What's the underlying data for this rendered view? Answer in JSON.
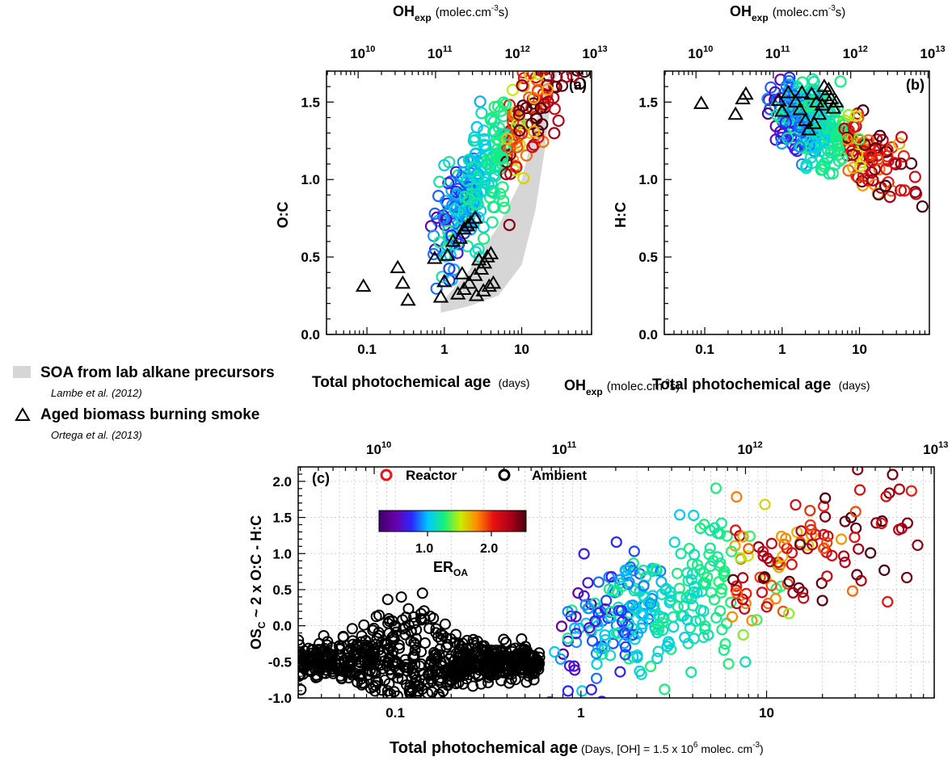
{
  "colors": {
    "ambient": "#000000",
    "reactor_legend": "#e8141b",
    "shade": "#d6d6d6",
    "colorbar": [
      "#3d006a",
      "#6a00a8",
      "#2a28ff",
      "#00c8ff",
      "#18f07a",
      "#c8ee00",
      "#ff8a00",
      "#e61111",
      "#b00018",
      "#4a0010"
    ]
  },
  "legend_side": {
    "soa_label": "SOA from lab alkane precursors",
    "soa_ref": "Lambe et al. (2012)",
    "bb_label": "Aged biomass burning smoke",
    "bb_ref": "Ortega et al. (2013)"
  },
  "chart_data": [
    {
      "id": "a",
      "type": "scatter",
      "panel_label": "(a)",
      "title": "",
      "ylabel": "O:C",
      "xlabel_main": "Total photochemical age",
      "xlabel_unit": "(days)",
      "top_axis_label_main": "OH",
      "top_axis_label_sub": "exp",
      "top_axis_unit": "(molec.cm",
      "top_axis_unit_exp": "-3",
      "top_axis_unit_tail": "s)",
      "x_scale": "log",
      "xlim": [
        0.03,
        80
      ],
      "ylim": [
        0,
        1.7
      ],
      "x_ticks": [
        0.1,
        1,
        10
      ],
      "x_tick_labels": [
        "0.1",
        "1",
        "10"
      ],
      "y_ticks": [
        0,
        0.5,
        1.0,
        1.5
      ],
      "y_tick_labels": [
        "0.0",
        "0.5",
        "1.0",
        "1.5"
      ],
      "top_ticks": [
        "10",
        "10",
        "10",
        "10"
      ],
      "top_tick_exps": [
        "10",
        "11",
        "12",
        "13"
      ],
      "top_tick_age_days": [
        0.077,
        0.77,
        7.7,
        77
      ],
      "ambient_triangles": [
        {
          "x": 0.09,
          "y": 0.31
        },
        {
          "x": 0.25,
          "y": 0.43
        },
        {
          "x": 0.29,
          "y": 0.33
        },
        {
          "x": 0.34,
          "y": 0.22
        },
        {
          "x": 0.75,
          "y": 0.49
        },
        {
          "x": 0.9,
          "y": 0.24
        },
        {
          "x": 1.0,
          "y": 0.34
        },
        {
          "x": 1.1,
          "y": 0.51
        },
        {
          "x": 1.3,
          "y": 0.6
        },
        {
          "x": 1.6,
          "y": 0.62
        },
        {
          "x": 1.8,
          "y": 0.68
        },
        {
          "x": 2.0,
          "y": 0.7
        },
        {
          "x": 2.2,
          "y": 0.72
        },
        {
          "x": 2.5,
          "y": 0.75
        },
        {
          "x": 1.5,
          "y": 0.26
        },
        {
          "x": 1.8,
          "y": 0.29
        },
        {
          "x": 2.1,
          "y": 0.33
        },
        {
          "x": 2.5,
          "y": 0.38
        },
        {
          "x": 3.0,
          "y": 0.42
        },
        {
          "x": 3.3,
          "y": 0.46
        },
        {
          "x": 3.6,
          "y": 0.5
        },
        {
          "x": 4.0,
          "y": 0.52
        },
        {
          "x": 2.6,
          "y": 0.25
        },
        {
          "x": 3.2,
          "y": 0.28
        },
        {
          "x": 3.8,
          "y": 0.31
        },
        {
          "x": 4.3,
          "y": 0.33
        },
        {
          "x": 1.7,
          "y": 0.39
        },
        {
          "x": 2.8,
          "y": 0.48
        }
      ],
      "shade_polygon": [
        {
          "x": 0.9,
          "y": 0.14
        },
        {
          "x": 2.0,
          "y": 0.18
        },
        {
          "x": 5.0,
          "y": 0.25
        },
        {
          "x": 10,
          "y": 0.45
        },
        {
          "x": 15,
          "y": 0.8
        },
        {
          "x": 20,
          "y": 1.2
        },
        {
          "x": 25,
          "y": 1.6
        },
        {
          "x": 30,
          "y": 1.7
        },
        {
          "x": 25,
          "y": 1.7
        },
        {
          "x": 20,
          "y": 1.62
        },
        {
          "x": 10,
          "y": 1.0
        },
        {
          "x": 5,
          "y": 0.7
        },
        {
          "x": 2.0,
          "y": 0.4
        },
        {
          "x": 0.9,
          "y": 0.2
        }
      ],
      "reactor_model": {
        "x0": 0.6,
        "x1": 65,
        "y_at_x0": 0.58,
        "slope_per_decade": 0.62,
        "spread": 0.18,
        "count": 360
      }
    },
    {
      "id": "b",
      "type": "scatter",
      "panel_label": "(b)",
      "title": "",
      "ylabel": "H:C",
      "xlabel_main": "Total photochemical age",
      "xlabel_unit": "(days)",
      "top_axis_label_main": "OH",
      "top_axis_label_sub": "exp",
      "top_axis_unit": "(molec.cm",
      "top_axis_unit_exp": "-3",
      "top_axis_unit_tail": "s)",
      "x_scale": "log",
      "xlim": [
        0.03,
        80
      ],
      "ylim": [
        0,
        1.7
      ],
      "x_ticks": [
        0.1,
        1,
        10
      ],
      "x_tick_labels": [
        "0.1",
        "1",
        "10"
      ],
      "y_ticks": [
        0,
        0.5,
        1.0,
        1.5
      ],
      "y_tick_labels": [
        "0.0",
        "0.5",
        "1.0",
        "1.5"
      ],
      "top_ticks": [
        "10",
        "10",
        "10",
        "10"
      ],
      "top_tick_exps": [
        "10",
        "11",
        "12",
        "13"
      ],
      "top_tick_age_days": [
        0.077,
        0.77,
        7.7,
        77
      ],
      "ambient_triangles": [
        {
          "x": 0.09,
          "y": 1.49
        },
        {
          "x": 0.25,
          "y": 1.42
        },
        {
          "x": 0.31,
          "y": 1.52
        },
        {
          "x": 0.34,
          "y": 1.55
        },
        {
          "x": 0.9,
          "y": 1.51
        },
        {
          "x": 1.0,
          "y": 1.44
        },
        {
          "x": 1.2,
          "y": 1.56
        },
        {
          "x": 1.5,
          "y": 1.5
        },
        {
          "x": 1.7,
          "y": 1.45
        },
        {
          "x": 2.0,
          "y": 1.38
        },
        {
          "x": 2.2,
          "y": 1.32
        },
        {
          "x": 2.6,
          "y": 1.36
        },
        {
          "x": 3.0,
          "y": 1.42
        },
        {
          "x": 3.3,
          "y": 1.48
        },
        {
          "x": 3.6,
          "y": 1.54
        },
        {
          "x": 4.0,
          "y": 1.58
        },
        {
          "x": 4.3,
          "y": 1.52
        },
        {
          "x": 4.6,
          "y": 1.46
        },
        {
          "x": 2.4,
          "y": 1.55
        },
        {
          "x": 2.8,
          "y": 1.5
        },
        {
          "x": 1.8,
          "y": 1.56
        },
        {
          "x": 3.5,
          "y": 1.6
        },
        {
          "x": 5.0,
          "y": 1.5
        }
      ],
      "reactor_model": {
        "x0": 0.6,
        "x1": 65,
        "y_at_x0": 1.5,
        "slope_per_decade": -0.25,
        "spread": 0.12,
        "count": 360
      }
    },
    {
      "id": "c",
      "type": "scatter",
      "panel_label": "(c)",
      "title": "",
      "ylabel_main": "OS",
      "ylabel_sub": "C",
      "ylabel_tail": " ~ 2 x O:C - H:C",
      "xlabel_main": "Total photochemical age",
      "xlabel_unit": "(Days, [OH] = 1.5 x 10",
      "xlabel_unit_exp": "6",
      "xlabel_unit_tail": " molec. cm",
      "xlabel_unit_exp2": "-3",
      "xlabel_unit_close": ")",
      "top_axis_label_main": "OH",
      "top_axis_label_sub": "exp",
      "top_axis_unit": "(molec.cm",
      "top_axis_unit_exp": "-3",
      "top_axis_unit_tail": "s)",
      "x_scale": "log",
      "xlim": [
        0.03,
        80
      ],
      "ylim": [
        -1.0,
        2.2
      ],
      "x_ticks": [
        0.1,
        1,
        10
      ],
      "x_tick_labels": [
        "0.1",
        "1",
        "10"
      ],
      "y_ticks": [
        -1.0,
        -0.5,
        0.0,
        0.5,
        1.0,
        1.5,
        2.0
      ],
      "y_tick_labels": [
        "-1.0",
        "-0.5",
        "0.0",
        "0.5",
        "1.0",
        "1.5",
        "2.0"
      ],
      "top_ticks": [
        "10",
        "10",
        "10",
        "10"
      ],
      "top_tick_exps": [
        "10",
        "11",
        "12",
        "13"
      ],
      "top_tick_age_days": [
        0.077,
        0.77,
        7.7,
        77
      ],
      "grid": true,
      "legend": {
        "reactor": "Reactor",
        "ambient": "Ambient"
      },
      "colorbar": {
        "label_main": "ER",
        "label_sub": "OA",
        "ticks": [
          "1.0",
          "2.0"
        ]
      },
      "ambient_model": {
        "x0": 0.03,
        "x1": 0.6,
        "center_y": -0.5,
        "spread": 0.22,
        "count": 700
      },
      "reactor_model": {
        "x0": 0.6,
        "x1": 70,
        "y_at_x0": -0.35,
        "slope_per_decade": 1.0,
        "spread": 0.45,
        "count": 380
      }
    }
  ]
}
